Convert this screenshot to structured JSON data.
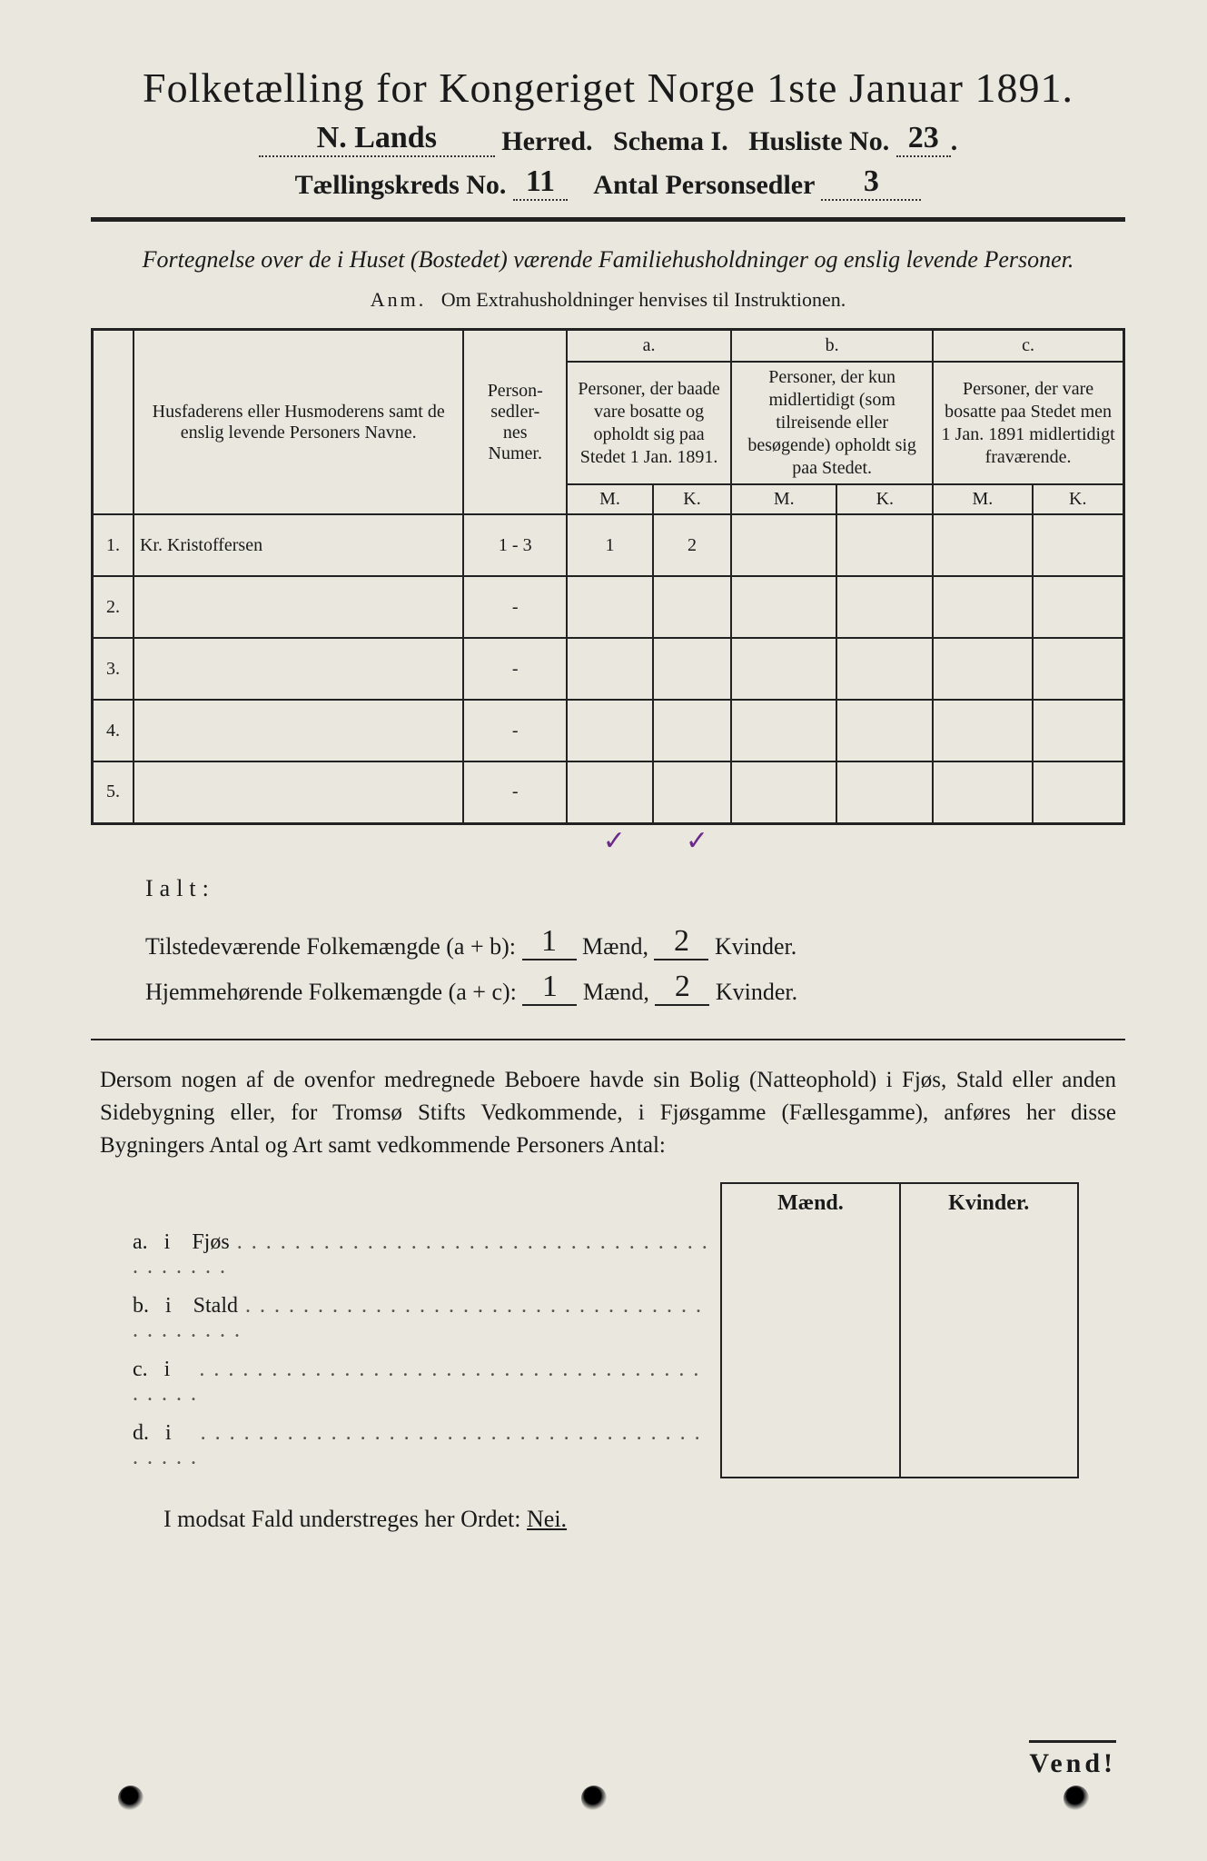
{
  "header": {
    "title": "Folketælling for Kongeriget Norge 1ste Januar 1891.",
    "herred_value": "N. Lands",
    "herred_label": "Herred.",
    "schema_label": "Schema I.",
    "husliste_label": "Husliste No.",
    "husliste_value": "23",
    "kreds_label": "Tællingskreds No.",
    "kreds_value": "11",
    "personsedler_label": "Antal Personsedler",
    "personsedler_value": "3"
  },
  "subtitle": "Fortegnelse over de i Huset (Bostedet) værende Familiehusholdninger og enslig levende Personer.",
  "anm_label": "Anm.",
  "anm_text": "Om Extrahusholdninger henvises til Instruktionen.",
  "table": {
    "col_name": "Husfaderens eller Husmoderens samt de enslig levende Personers Navne.",
    "col_num": "Person-\nsedler-\nnes\nNumer.",
    "group_a_tag": "a.",
    "group_a": "Personer, der baade vare bosatte og opholdt sig paa Stedet 1 Jan. 1891.",
    "group_b_tag": "b.",
    "group_b": "Personer, der kun midlertidigt (som tilreisende eller besøgende) opholdt sig paa Stedet.",
    "group_c_tag": "c.",
    "group_c": "Personer, der vare bosatte paa Stedet men 1 Jan. 1891 midlertidigt fraværende.",
    "M": "M.",
    "K": "K.",
    "rows": [
      {
        "n": "1.",
        "name": "Kr. Kristoffersen",
        "num": "1 - 3",
        "aM": "1",
        "aK": "2",
        "bM": "",
        "bK": "",
        "cM": "",
        "cK": ""
      },
      {
        "n": "2.",
        "name": "",
        "num": "-",
        "aM": "",
        "aK": "",
        "bM": "",
        "bK": "",
        "cM": "",
        "cK": ""
      },
      {
        "n": "3.",
        "name": "",
        "num": "-",
        "aM": "",
        "aK": "",
        "bM": "",
        "bK": "",
        "cM": "",
        "cK": ""
      },
      {
        "n": "4.",
        "name": "",
        "num": "-",
        "aM": "",
        "aK": "",
        "bM": "",
        "bK": "",
        "cM": "",
        "cK": ""
      },
      {
        "n": "5.",
        "name": "",
        "num": "-",
        "aM": "",
        "aK": "",
        "bM": "",
        "bK": "",
        "cM": "",
        "cK": ""
      }
    ],
    "tick_aM": "✓",
    "tick_aK": "✓"
  },
  "ialt": {
    "label": "Ialt:",
    "line1_pre": "Tilstedeværende Folkemængde (a + b):",
    "line2_pre": "Hjemmehørende Folkemængde (a + c):",
    "maend": "Mænd,",
    "kvinder": "Kvinder.",
    "l1_m": "1",
    "l1_k": "2",
    "l2_m": "1",
    "l2_k": "2"
  },
  "para": "Dersom nogen af de ovenfor medregnede Beboere havde sin Bolig (Natteophold) i Fjøs, Stald eller anden Sidebygning eller, for Tromsø Stifts Vedkommende, i Fjøsgamme (Fællesgamme), anføres her disse Bygningers Antal og Art samt vedkommende Personers Antal:",
  "sec_table": {
    "h_m": "Mænd.",
    "h_k": "Kvinder.",
    "rows": [
      {
        "tag": "a.",
        "i": "i",
        "label": "Fjøs"
      },
      {
        "tag": "b.",
        "i": "i",
        "label": "Stald"
      },
      {
        "tag": "c.",
        "i": "i",
        "label": ""
      },
      {
        "tag": "d.",
        "i": "i",
        "label": ""
      }
    ]
  },
  "nei_line": "I modsat Fald understreges her Ordet:",
  "nei_word": "Nei.",
  "vend": "Vend!",
  "colors": {
    "paper": "#eae7de",
    "ink": "#1a1a1a",
    "tick": "#6b2a8a"
  }
}
